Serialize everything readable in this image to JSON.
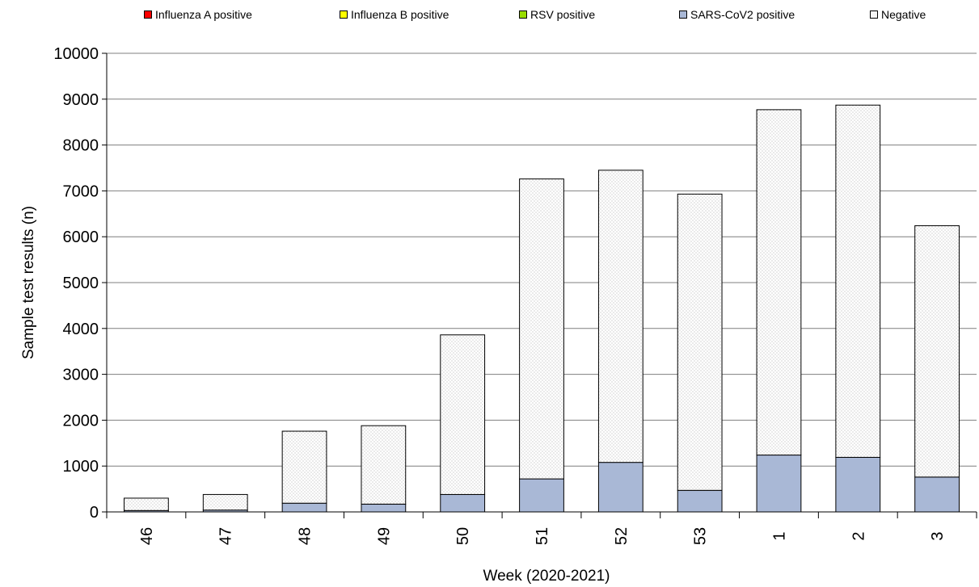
{
  "chart_data": {
    "type": "bar",
    "stacked": true,
    "title": "",
    "xlabel": "Week (2020-2021)",
    "ylabel": "Sample test results (n)",
    "ylim": [
      0,
      10000
    ],
    "yticks": [
      "0",
      "1000",
      "2000",
      "3000",
      "4000",
      "5000",
      "6000",
      "7000",
      "8000",
      "9000",
      "10000"
    ],
    "grid": true,
    "legend_position": "top",
    "categories": [
      "46",
      "47",
      "48",
      "49",
      "50",
      "51",
      "52",
      "53",
      "1",
      "2",
      "3"
    ],
    "series": [
      {
        "name": "Influenza A positive",
        "color": "#ff0000",
        "values": [
          0,
          0,
          0,
          0,
          0,
          0,
          0,
          0,
          0,
          0,
          0
        ]
      },
      {
        "name": "Influenza B positive",
        "color": "#ffff00",
        "values": [
          0,
          0,
          0,
          0,
          0,
          0,
          0,
          0,
          0,
          0,
          0
        ]
      },
      {
        "name": "RSV positive",
        "color": "#99dd00",
        "values": [
          0,
          0,
          0,
          0,
          0,
          0,
          0,
          0,
          0,
          0,
          0
        ]
      },
      {
        "name": "SARS-CoV2 positive",
        "color": "#a9b8d6",
        "values": [
          30,
          40,
          190,
          170,
          380,
          720,
          1080,
          470,
          1240,
          1190,
          760
        ]
      },
      {
        "name": "Negative",
        "color": "#f5f5f5",
        "values": [
          270,
          340,
          1570,
          1710,
          3480,
          6540,
          6370,
          6460,
          7530,
          7680,
          5480
        ]
      }
    ]
  }
}
